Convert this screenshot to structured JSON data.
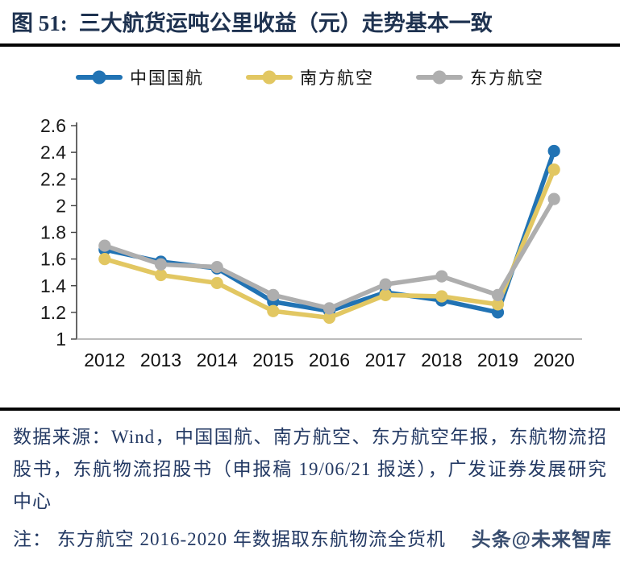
{
  "header": {
    "figure_label": "图 51:",
    "title": "三大航货运吨公里收益（元）走势基本一致"
  },
  "chart_data": {
    "type": "line",
    "title": "三大航货运吨公里收益（元）走势基本一致",
    "x": [
      2012,
      2013,
      2014,
      2015,
      2016,
      2017,
      2018,
      2019,
      2020
    ],
    "series": [
      {
        "name": "中国国航",
        "color": "#2173b4",
        "values": [
          1.67,
          1.58,
          1.53,
          1.28,
          1.21,
          1.35,
          1.29,
          1.2,
          2.41
        ]
      },
      {
        "name": "南方航空",
        "color": "#e2c762",
        "values": [
          1.6,
          1.48,
          1.42,
          1.21,
          1.16,
          1.33,
          1.32,
          1.26,
          2.27
        ]
      },
      {
        "name": "东方航空",
        "color": "#aeaeae",
        "values": [
          1.7,
          1.56,
          1.54,
          1.33,
          1.23,
          1.41,
          1.47,
          1.33,
          2.05
        ]
      }
    ],
    "xlabel": "",
    "ylabel": "",
    "ylim": [
      1,
      2.6
    ],
    "ytick_step": 0.2,
    "grid": false,
    "legend_position": "top",
    "axis_colors": {
      "y_axis_line": "#404040",
      "x_axis_line": "#a6a6a6",
      "tick_mark": "#404040",
      "tick_label": "#1a1a1a"
    }
  },
  "footer": {
    "source": "数据来源：Wind，中国国航、南方航空、东方航空年报，东航物流招股书，东航物流招股书（申报稿 19/06/21 报送），广发证券发展研究中心",
    "note": "注： 东方航空 2016-2020 年数据取东航物流全货机",
    "watermark": "头条@未来智库"
  }
}
